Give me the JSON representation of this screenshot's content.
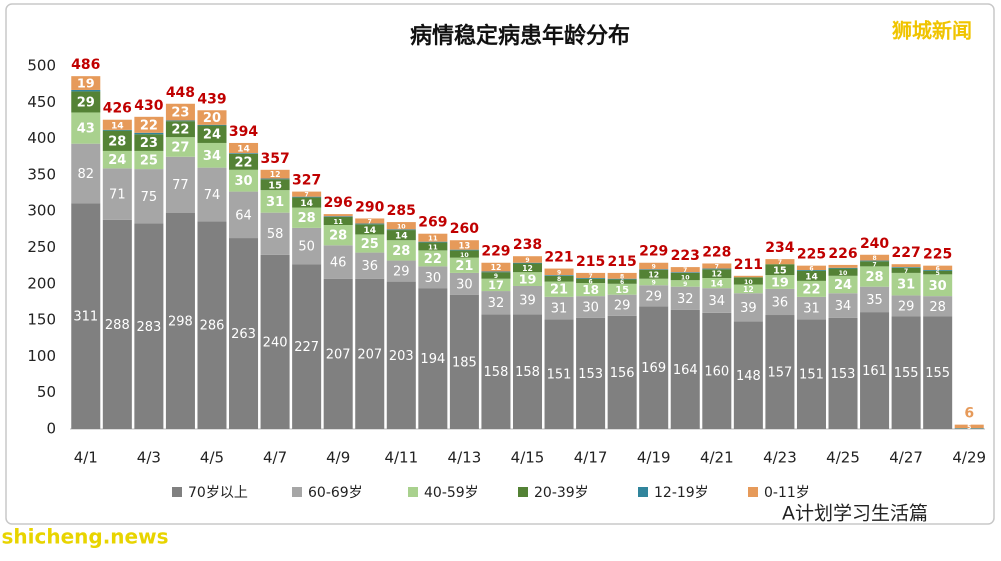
{
  "chart_data": {
    "type": "stacked-bar",
    "title": "病情稳定病患年龄分布",
    "categories": [
      "4/1",
      null,
      "4/3",
      null,
      "4/5",
      null,
      "4/7",
      null,
      "4/9",
      null,
      "4/11",
      null,
      "4/13",
      null,
      "4/15",
      null,
      "4/17",
      null,
      "4/19",
      null,
      "4/21",
      null,
      "4/23",
      null,
      "4/25",
      null,
      "4/27",
      null,
      "4/29"
    ],
    "series": [
      {
        "name": "70岁以上",
        "color": "#808080",
        "values": [
          311,
          288,
          283,
          298,
          286,
          263,
          240,
          227,
          207,
          207,
          203,
          194,
          185,
          158,
          158,
          151,
          153,
          156,
          169,
          164,
          160,
          148,
          157,
          151,
          153,
          161,
          155,
          155,
          0
        ]
      },
      {
        "name": "60-69岁",
        "color": "#a6a6a6",
        "values": [
          82,
          71,
          75,
          77,
          74,
          64,
          58,
          50,
          46,
          36,
          29,
          30,
          30,
          32,
          39,
          31,
          30,
          29,
          29,
          32,
          34,
          39,
          36,
          31,
          34,
          35,
          29,
          28,
          0
        ]
      },
      {
        "name": "40-59岁",
        "color": "#a9d18e",
        "values": [
          43,
          24,
          25,
          27,
          34,
          30,
          31,
          28,
          28,
          25,
          28,
          22,
          21,
          17,
          19,
          21,
          18,
          15,
          9,
          9,
          14,
          12,
          19,
          22,
          24,
          28,
          31,
          30,
          0
        ]
      },
      {
        "name": "20-39岁",
        "color": "#548235",
        "values": [
          29,
          28,
          23,
          22,
          24,
          22,
          15,
          14,
          11,
          14,
          14,
          11,
          10,
          9,
          12,
          8,
          6,
          6,
          12,
          10,
          12,
          10,
          15,
          14,
          10,
          7,
          7,
          5,
          0
        ]
      },
      {
        "name": "12-19岁",
        "color": "#31859c",
        "values": [
          2,
          1,
          2,
          1,
          1,
          1,
          1,
          1,
          1,
          1,
          1,
          1,
          1,
          1,
          1,
          1,
          1,
          1,
          1,
          1,
          1,
          0,
          0,
          1,
          1,
          1,
          1,
          1,
          1
        ]
      },
      {
        "name": "0-11岁",
        "color": "#e69a5a",
        "values": [
          19,
          14,
          22,
          23,
          20,
          14,
          12,
          7,
          3,
          7,
          10,
          11,
          13,
          12,
          9,
          9,
          7,
          8,
          9,
          7,
          7,
          2,
          7,
          6,
          4,
          8,
          4,
          6,
          5
        ]
      }
    ],
    "totals": [
      486,
      426,
      430,
      448,
      439,
      394,
      357,
      327,
      296,
      290,
      285,
      269,
      260,
      229,
      238,
      221,
      215,
      215,
      229,
      223,
      228,
      211,
      234,
      225,
      226,
      240,
      227,
      225,
      6
    ],
    "ylim": [
      0,
      500
    ],
    "yticks": [
      0,
      50,
      100,
      150,
      200,
      250,
      300,
      350,
      400,
      450,
      500
    ],
    "watermarks": [
      "狮城新闻",
      "A计划学习生活篇",
      "shicheng.news"
    ]
  }
}
